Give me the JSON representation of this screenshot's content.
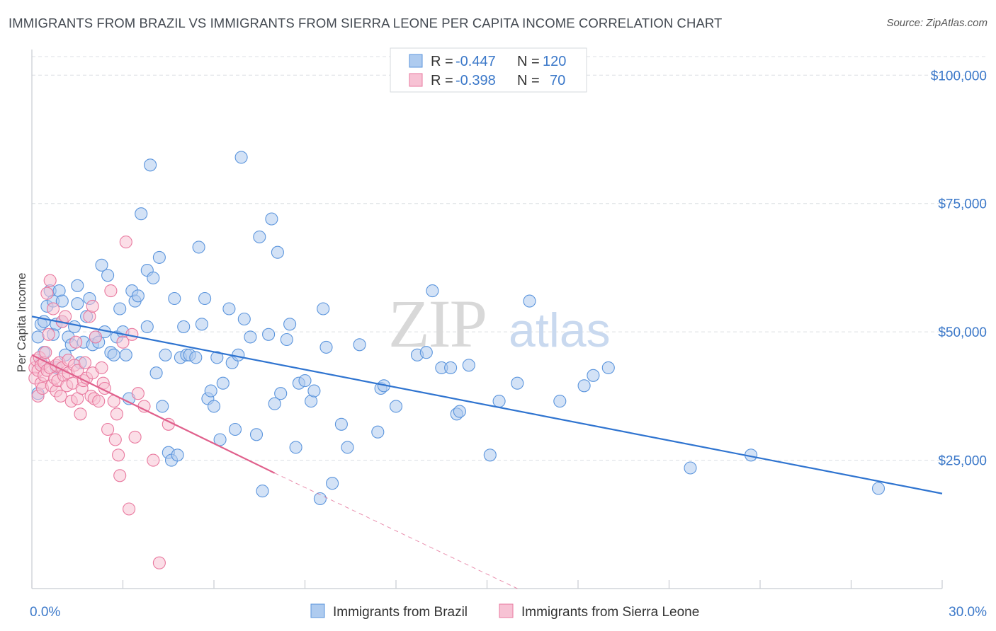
{
  "header": {
    "title": "IMMIGRANTS FROM BRAZIL VS IMMIGRANTS FROM SIERRA LEONE PER CAPITA INCOME CORRELATION CHART",
    "source": "Source: ZipAtlas.com"
  },
  "watermark": {
    "zip": "ZIP",
    "atlas": "atlas"
  },
  "legend": {
    "rows": [
      {
        "r_label": "R =",
        "r_value": "-0.447",
        "n_label": "N =",
        "n_value": "120",
        "color": "#6fa8e8"
      },
      {
        "r_label": "R =",
        "r_value": "-0.398",
        "n_label": "N =",
        "n_value": "70",
        "color": "#f08fb0"
      }
    ]
  },
  "colors": {
    "brazil_fill": "#aecbef",
    "brazil_stroke": "#5b95dd",
    "brazil_line": "#2f74d0",
    "sierra_fill": "#f7c2d4",
    "sierra_stroke": "#e9799f",
    "sierra_line": "#e0608c",
    "grid": "#dcdfe4",
    "axis_text": "#3b78c9"
  },
  "chart_data": {
    "type": "scatter",
    "title": "IMMIGRANTS FROM BRAZIL VS IMMIGRANTS FROM SIERRA LEONE PER CAPITA INCOME CORRELATION CHART",
    "xlabel": "",
    "ylabel": "Per Capita Income",
    "xlim": [
      0,
      30
    ],
    "ylim": [
      0,
      105000
    ],
    "x_tick_labels": [
      "0.0%",
      "30.0%"
    ],
    "y_ticks": [
      25000,
      50000,
      75000,
      100000
    ],
    "y_tick_labels": [
      "$25,000",
      "$50,000",
      "$75,000",
      "$100,000"
    ],
    "grid": true,
    "legend_position": "bottom",
    "series": [
      {
        "name": "Immigrants from Brazil",
        "r": -0.447,
        "n": 120,
        "trend": {
          "x": [
            0,
            30
          ],
          "y": [
            53000,
            18500
          ]
        },
        "points": [
          [
            0.2,
            38000
          ],
          [
            0.2,
            49000
          ],
          [
            0.3,
            44000
          ],
          [
            0.3,
            51500
          ],
          [
            0.4,
            52000
          ],
          [
            0.5,
            55000
          ],
          [
            0.6,
            58000
          ],
          [
            0.7,
            56000
          ],
          [
            0.7,
            49500
          ],
          [
            0.8,
            51500
          ],
          [
            0.9,
            58000
          ],
          [
            1.0,
            52000
          ],
          [
            1.0,
            56000
          ],
          [
            1.1,
            45500
          ],
          [
            1.2,
            49000
          ],
          [
            1.3,
            47500
          ],
          [
            1.4,
            51000
          ],
          [
            1.5,
            55500
          ],
          [
            1.5,
            59000
          ],
          [
            1.6,
            44000
          ],
          [
            1.7,
            48000
          ],
          [
            1.8,
            53000
          ],
          [
            1.9,
            56500
          ],
          [
            2.0,
            47500
          ],
          [
            2.1,
            49000
          ],
          [
            2.3,
            63000
          ],
          [
            2.4,
            50000
          ],
          [
            2.5,
            61000
          ],
          [
            2.6,
            46000
          ],
          [
            2.7,
            45500
          ],
          [
            2.8,
            49000
          ],
          [
            2.9,
            54500
          ],
          [
            3.0,
            50000
          ],
          [
            3.1,
            45500
          ],
          [
            3.2,
            37000
          ],
          [
            3.3,
            58000
          ],
          [
            3.4,
            56000
          ],
          [
            3.5,
            57000
          ],
          [
            3.6,
            73000
          ],
          [
            3.8,
            62000
          ],
          [
            3.8,
            51000
          ],
          [
            3.9,
            82500
          ],
          [
            4.0,
            60500
          ],
          [
            4.1,
            42000
          ],
          [
            4.2,
            64500
          ],
          [
            4.3,
            35500
          ],
          [
            4.4,
            45500
          ],
          [
            4.5,
            26500
          ],
          [
            4.6,
            25000
          ],
          [
            4.7,
            56500
          ],
          [
            4.8,
            26000
          ],
          [
            4.9,
            45000
          ],
          [
            5.0,
            51000
          ],
          [
            5.1,
            45500
          ],
          [
            5.2,
            45500
          ],
          [
            5.4,
            45000
          ],
          [
            5.5,
            66500
          ],
          [
            5.6,
            51500
          ],
          [
            5.7,
            56500
          ],
          [
            5.8,
            37000
          ],
          [
            5.9,
            38500
          ],
          [
            6.0,
            35500
          ],
          [
            6.2,
            29000
          ],
          [
            6.3,
            40000
          ],
          [
            6.5,
            54500
          ],
          [
            6.6,
            44000
          ],
          [
            6.7,
            31000
          ],
          [
            6.8,
            45500
          ],
          [
            6.9,
            84000
          ],
          [
            7.0,
            52500
          ],
          [
            7.2,
            49000
          ],
          [
            7.4,
            30000
          ],
          [
            7.5,
            68500
          ],
          [
            7.6,
            19000
          ],
          [
            7.8,
            49500
          ],
          [
            7.9,
            72000
          ],
          [
            8.0,
            36000
          ],
          [
            8.1,
            65500
          ],
          [
            8.2,
            38000
          ],
          [
            8.4,
            48500
          ],
          [
            8.5,
            51500
          ],
          [
            8.7,
            27500
          ],
          [
            8.8,
            40000
          ],
          [
            9.0,
            40500
          ],
          [
            9.2,
            36500
          ],
          [
            9.3,
            38500
          ],
          [
            9.5,
            17500
          ],
          [
            9.6,
            54500
          ],
          [
            9.7,
            47000
          ],
          [
            9.9,
            20500
          ],
          [
            10.2,
            32000
          ],
          [
            10.4,
            27500
          ],
          [
            10.8,
            47500
          ],
          [
            11.4,
            30500
          ],
          [
            11.5,
            39000
          ],
          [
            11.6,
            39500
          ],
          [
            12.0,
            35500
          ],
          [
            12.7,
            45500
          ],
          [
            13.0,
            46000
          ],
          [
            13.2,
            58000
          ],
          [
            13.5,
            43000
          ],
          [
            13.8,
            43000
          ],
          [
            14.0,
            34000
          ],
          [
            14.1,
            34500
          ],
          [
            14.4,
            43500
          ],
          [
            15.1,
            26000
          ],
          [
            15.4,
            36500
          ],
          [
            16.0,
            40000
          ],
          [
            16.4,
            56000
          ],
          [
            17.4,
            36500
          ],
          [
            18.2,
            39500
          ],
          [
            18.5,
            41500
          ],
          [
            19.0,
            43000
          ],
          [
            21.7,
            23500
          ],
          [
            23.7,
            26000
          ],
          [
            27.9,
            19500
          ],
          [
            0.4,
            46000
          ],
          [
            0.8,
            43000
          ],
          [
            2.2,
            48000
          ],
          [
            6.1,
            45000
          ]
        ]
      },
      {
        "name": "Immigrants from Sierra Leone",
        "r": -0.398,
        "n": 70,
        "trend": {
          "x": [
            0,
            8.0
          ],
          "y": [
            45500,
            22500
          ]
        },
        "trend_dashed": {
          "x": [
            8.0,
            16.0
          ],
          "y": [
            22500,
            0
          ]
        },
        "points": [
          [
            0.1,
            43000
          ],
          [
            0.1,
            41000
          ],
          [
            0.15,
            44500
          ],
          [
            0.2,
            37500
          ],
          [
            0.2,
            42500
          ],
          [
            0.25,
            45000
          ],
          [
            0.3,
            40000
          ],
          [
            0.3,
            43500
          ],
          [
            0.35,
            39000
          ],
          [
            0.4,
            44000
          ],
          [
            0.4,
            41500
          ],
          [
            0.45,
            46000
          ],
          [
            0.5,
            42500
          ],
          [
            0.5,
            57500
          ],
          [
            0.55,
            49500
          ],
          [
            0.6,
            43000
          ],
          [
            0.6,
            60000
          ],
          [
            0.65,
            39500
          ],
          [
            0.7,
            54500
          ],
          [
            0.75,
            41000
          ],
          [
            0.8,
            43500
          ],
          [
            0.8,
            38500
          ],
          [
            0.85,
            40500
          ],
          [
            0.9,
            44000
          ],
          [
            0.95,
            37500
          ],
          [
            1.0,
            52000
          ],
          [
            1.0,
            43000
          ],
          [
            1.05,
            41500
          ],
          [
            1.1,
            53000
          ],
          [
            1.15,
            39500
          ],
          [
            1.2,
            44500
          ],
          [
            1.2,
            42000
          ],
          [
            1.3,
            36500
          ],
          [
            1.35,
            40000
          ],
          [
            1.4,
            43500
          ],
          [
            1.45,
            48000
          ],
          [
            1.5,
            42500
          ],
          [
            1.5,
            37000
          ],
          [
            1.6,
            34000
          ],
          [
            1.65,
            39000
          ],
          [
            1.7,
            40500
          ],
          [
            1.75,
            44000
          ],
          [
            1.8,
            41000
          ],
          [
            1.9,
            53000
          ],
          [
            1.95,
            37500
          ],
          [
            2.0,
            55000
          ],
          [
            2.0,
            42000
          ],
          [
            2.05,
            37000
          ],
          [
            2.1,
            49000
          ],
          [
            2.2,
            36500
          ],
          [
            2.3,
            43000
          ],
          [
            2.35,
            40000
          ],
          [
            2.4,
            39000
          ],
          [
            2.5,
            31000
          ],
          [
            2.6,
            58000
          ],
          [
            2.7,
            36500
          ],
          [
            2.75,
            29000
          ],
          [
            2.8,
            34000
          ],
          [
            2.85,
            26000
          ],
          [
            2.9,
            22000
          ],
          [
            3.0,
            48000
          ],
          [
            3.1,
            67500
          ],
          [
            3.2,
            15500
          ],
          [
            3.3,
            49500
          ],
          [
            3.4,
            29500
          ],
          [
            3.5,
            38000
          ],
          [
            3.7,
            35500
          ],
          [
            4.0,
            25000
          ],
          [
            4.2,
            5000
          ],
          [
            4.5,
            32000
          ]
        ]
      }
    ]
  }
}
